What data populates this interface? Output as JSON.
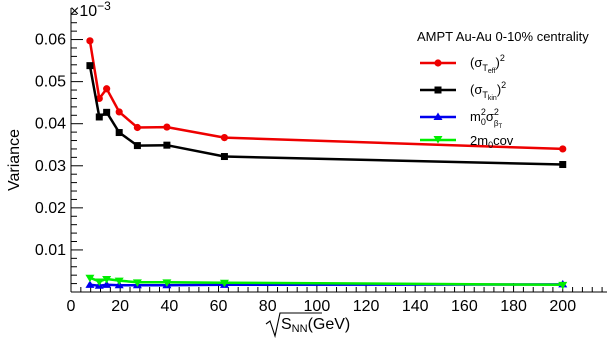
{
  "chart_data": {
    "type": "line",
    "ylabel": "Variance",
    "xlabel_radical": "S",
    "xlabel_subscript": "NN",
    "xlabel_unit": "(GeV)",
    "y_multiplier_base": "×10",
    "y_multiplier_exponent": "−3",
    "xlim": [
      0,
      218
    ],
    "ylim": [
      0.0,
      0.0675
    ],
    "x_ticks": [
      0,
      20,
      40,
      60,
      80,
      100,
      120,
      140,
      160,
      180,
      200
    ],
    "y_ticks": [
      0.01,
      0.02,
      0.03,
      0.04,
      0.05,
      0.06
    ],
    "y_tick_labels": [
      "0.01",
      "0.02",
      "0.03",
      "0.04",
      "0.05",
      "0.06"
    ],
    "grid": false,
    "legend_position": "top-right",
    "legend_title": "AMPT Au-Au 0-10% centrality",
    "x": [
      7.7,
      11.5,
      14.5,
      19.6,
      27,
      39,
      62.4,
      200
    ],
    "series": [
      {
        "key": "teff",
        "color": "#ee0000",
        "marker": "circle",
        "values": [
          0.0597,
          0.046,
          0.0483,
          0.0428,
          0.0391,
          0.0392,
          0.0367,
          0.034
        ]
      },
      {
        "key": "tkin",
        "color": "#000000",
        "marker": "square",
        "values": [
          0.0538,
          0.0416,
          0.0427,
          0.0379,
          0.0348,
          0.0349,
          0.0322,
          0.0303
        ]
      },
      {
        "key": "m0beta",
        "color": "#0000ee",
        "marker": "triangle",
        "values": [
          0.0017,
          0.0015,
          0.0017,
          0.0016,
          0.0016,
          0.0016,
          0.0017,
          0.0018
        ]
      },
      {
        "key": "cov",
        "color": "#00ee00",
        "marker": "triangle-down",
        "values": [
          0.0034,
          0.0025,
          0.0031,
          0.0027,
          0.0023,
          0.0023,
          0.0022,
          0.0017
        ]
      }
    ],
    "legend": [
      {
        "key": "teff",
        "main": "(σ",
        "sub1": "T",
        "sub2": "eff",
        "close": ")",
        "sup": "2"
      },
      {
        "key": "tkin",
        "main": "(σ",
        "sub1": "T",
        "sub2": "kin",
        "close": ")",
        "sup": "2"
      },
      {
        "key": "m0beta",
        "main": "m",
        "msub": "0",
        "msup": "2",
        "sigma": "σ",
        "ssub": "β",
        "ssub2": "T",
        "ssup": "2"
      },
      {
        "key": "cov",
        "text": "2m",
        "tsub": "0",
        "trest": "cov"
      }
    ]
  }
}
